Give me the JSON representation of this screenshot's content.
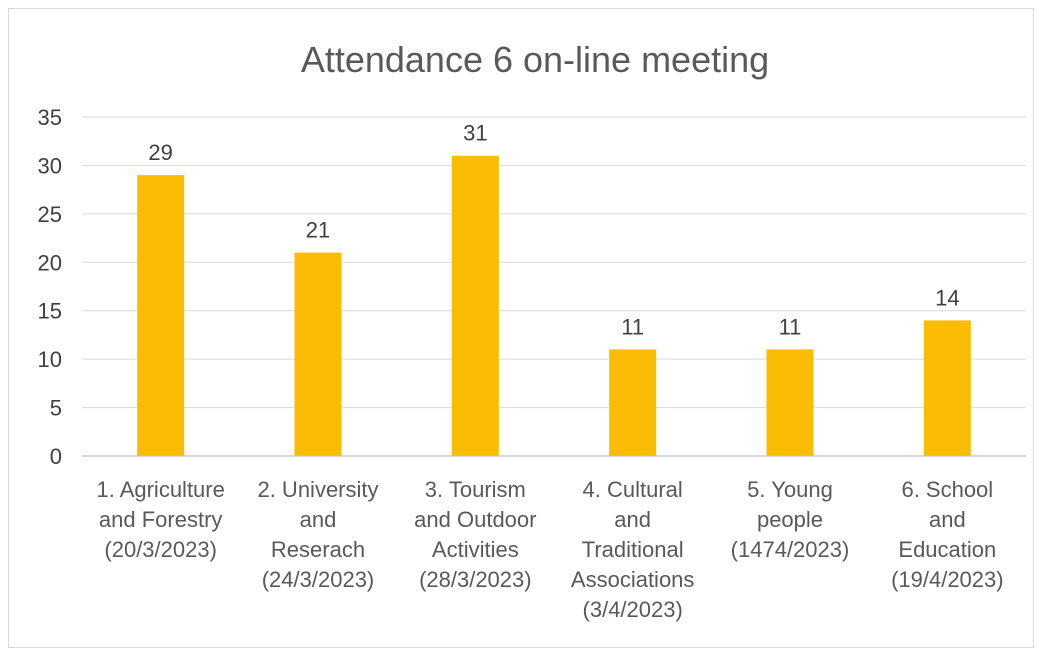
{
  "chart_data": {
    "type": "bar",
    "title": "Attendance 6 on-line meeting",
    "xlabel": "",
    "ylabel": "",
    "ylim": [
      0,
      35
    ],
    "yticks": [
      0,
      5,
      10,
      15,
      20,
      25,
      30,
      35
    ],
    "grid": true,
    "legend": "none",
    "bar_color": "#FBBC04",
    "categories": [
      [
        "1. Agriculture",
        "and Forestry",
        "(20/3/2023)"
      ],
      [
        "2. University",
        "and",
        "Reserach",
        "(24/3/2023)"
      ],
      [
        "3. Tourism",
        "and Outdoor",
        "Activities",
        "(28/3/2023)"
      ],
      [
        "4. Cultural",
        "and",
        "Traditional",
        "Associations",
        "(3/4/2023)"
      ],
      [
        "5. Young",
        "people",
        "(1474/2023)"
      ],
      [
        "6. School",
        "and",
        "Education",
        "(19/4/2023)"
      ]
    ],
    "values": [
      29,
      21,
      31,
      11,
      11,
      14
    ]
  }
}
